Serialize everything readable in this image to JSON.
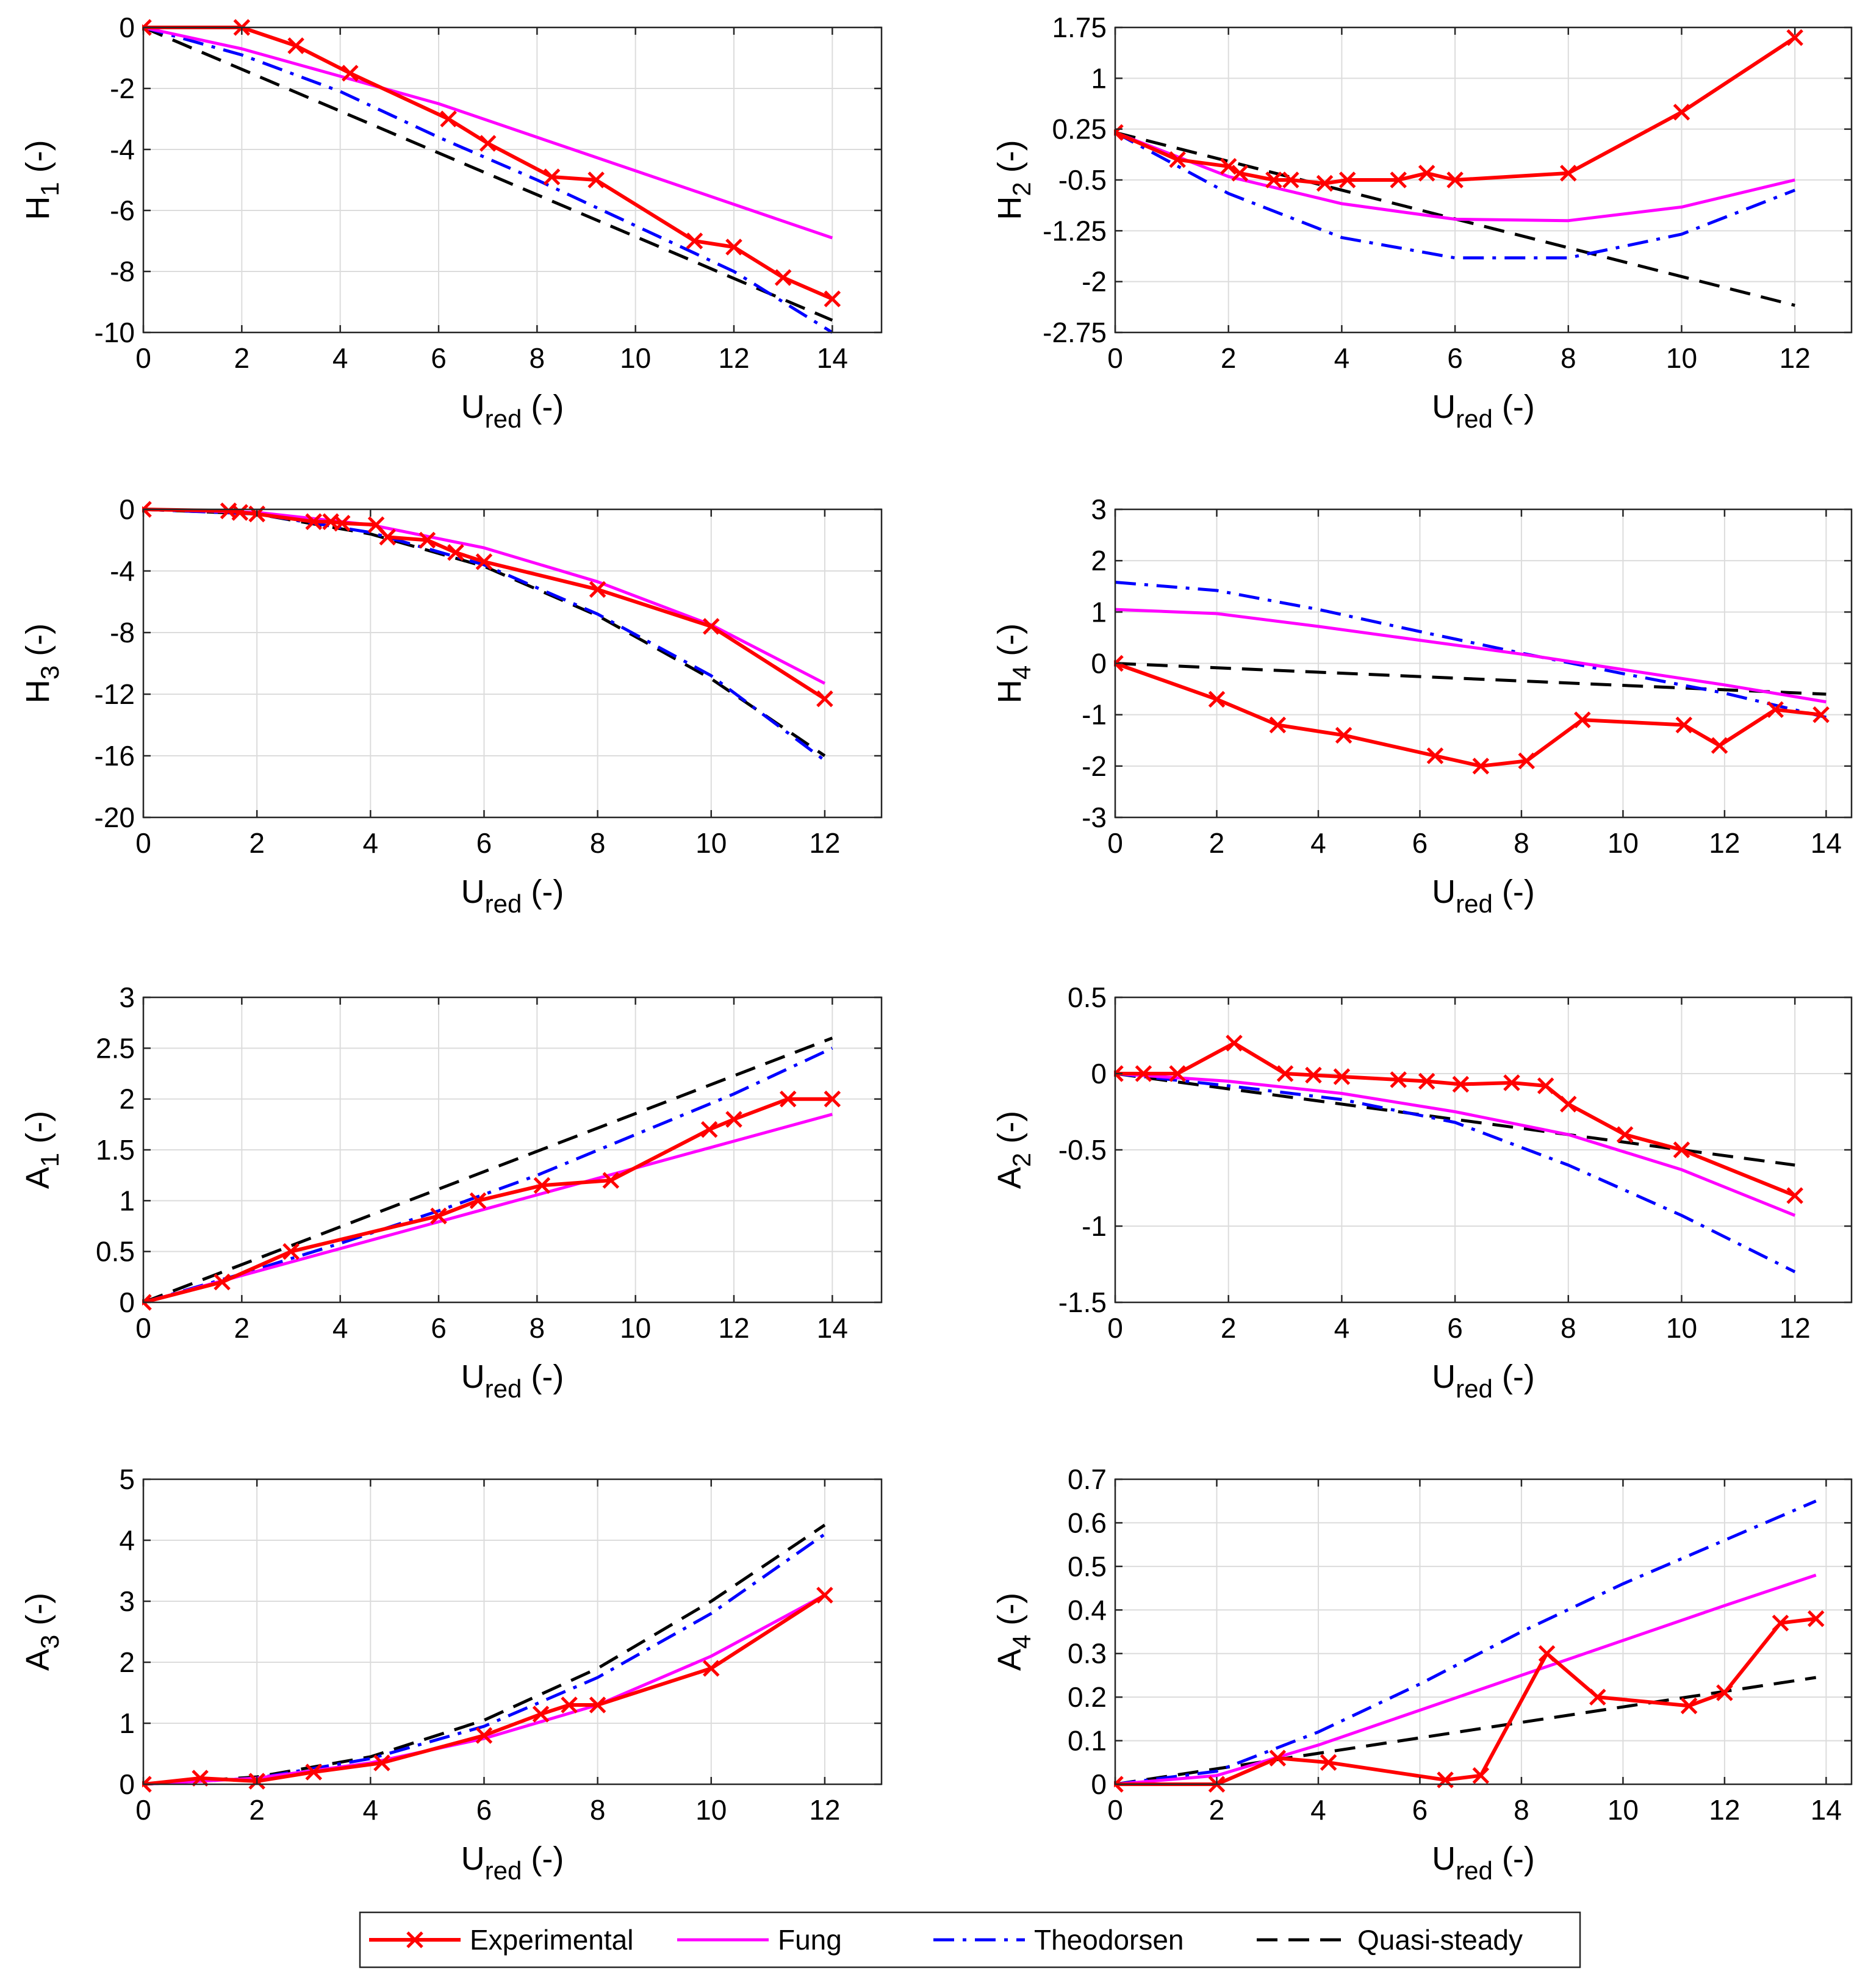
{
  "legend": {
    "entries": [
      {
        "label": "Experimental",
        "color": "#ff0000",
        "style": "solid-x"
      },
      {
        "label": "Fung",
        "color": "#ff00ff",
        "style": "solid"
      },
      {
        "label": "Theodorsen",
        "color": "#0000ff",
        "style": "dashdot"
      },
      {
        "label": "Quasi-steady",
        "color": "#000000",
        "style": "dashed"
      }
    ]
  },
  "chart_data": [
    {
      "type": "line",
      "id": "H1",
      "ylabel": {
        "main": "H",
        "sub": "1",
        "suffix": " (-)"
      },
      "xlabel": {
        "main": "U",
        "sub": "red",
        "suffix": " (-)"
      },
      "xlim": [
        0,
        15
      ],
      "ylim": [
        -10,
        0
      ],
      "xticks": [
        0,
        2,
        4,
        6,
        8,
        10,
        12,
        14
      ],
      "xtick_labels": [
        "0",
        "2",
        "4",
        "6",
        "8",
        "10",
        "12",
        "14"
      ],
      "yticks": [
        0,
        -2,
        -4,
        -6,
        -8,
        -10
      ],
      "ytick_labels": [
        "0",
        "-2",
        "-4",
        "-6",
        "-8",
        "-10"
      ],
      "series": [
        {
          "name": "Experimental",
          "x": [
            0,
            2,
            3.1,
            4.2,
            6.2,
            7,
            8.3,
            9.2,
            11.2,
            12,
            13,
            14
          ],
          "y": [
            0,
            0,
            -0.6,
            -1.5,
            -3,
            -3.8,
            -4.9,
            -5,
            -7,
            -7.2,
            -8.2,
            -8.9
          ]
        },
        {
          "name": "Fung",
          "x": [
            0,
            2,
            4,
            6,
            8,
            10,
            12,
            14
          ],
          "y": [
            0,
            -0.7,
            -1.6,
            -2.5,
            -3.6,
            -4.7,
            -5.8,
            -6.9
          ]
        },
        {
          "name": "Theodorsen",
          "x": [
            0,
            2,
            4,
            6,
            8,
            10,
            12,
            14
          ],
          "y": [
            0,
            -0.9,
            -2.1,
            -3.6,
            -5.0,
            -6.5,
            -8.0,
            -10.0
          ]
        },
        {
          "name": "Quasi-steady",
          "x": [
            0,
            14
          ],
          "y": [
            0,
            -9.6
          ]
        }
      ]
    },
    {
      "type": "line",
      "id": "H2",
      "ylabel": {
        "main": "H",
        "sub": "2",
        "suffix": " (-)"
      },
      "xlabel": {
        "main": "U",
        "sub": "red",
        "suffix": " (-)"
      },
      "xlim": [
        0,
        13
      ],
      "ylim": [
        -2.75,
        1.75
      ],
      "xticks": [
        0,
        2,
        4,
        6,
        8,
        10,
        12
      ],
      "xtick_labels": [
        "0",
        "2",
        "4",
        "6",
        "8",
        "10",
        "12"
      ],
      "yticks": [
        1.75,
        1,
        0.25,
        -0.5,
        -1.25,
        -2,
        -2.75
      ],
      "ytick_labels": [
        "1.75",
        "1",
        "0.25",
        "-0.5",
        "-1.25",
        "-2",
        "-2.75"
      ],
      "series": [
        {
          "name": "Experimental",
          "x": [
            0,
            1.1,
            2,
            2.2,
            2.8,
            3.1,
            3.7,
            4.1,
            5,
            5.5,
            6,
            8,
            10,
            12
          ],
          "y": [
            0.2,
            -0.2,
            -0.3,
            -0.4,
            -0.5,
            -0.5,
            -0.55,
            -0.5,
            -0.5,
            -0.4,
            -0.5,
            -0.4,
            0.5,
            1.6
          ]
        },
        {
          "name": "Fung",
          "x": [
            0,
            2,
            4,
            6,
            8,
            10,
            12
          ],
          "y": [
            0.2,
            -0.45,
            -0.85,
            -1.08,
            -1.1,
            -0.9,
            -0.5
          ]
        },
        {
          "name": "Theodorsen",
          "x": [
            0,
            2,
            4,
            6,
            8,
            10,
            12
          ],
          "y": [
            0.2,
            -0.7,
            -1.35,
            -1.65,
            -1.65,
            -1.3,
            -0.65
          ]
        },
        {
          "name": "Quasi-steady",
          "x": [
            0,
            12
          ],
          "y": [
            0.2,
            -2.35
          ]
        }
      ]
    },
    {
      "type": "line",
      "id": "H3",
      "ylabel": {
        "main": "H",
        "sub": "3",
        "suffix": " (-)"
      },
      "xlabel": {
        "main": "U",
        "sub": "red",
        "suffix": " (-)"
      },
      "xlim": [
        0,
        13
      ],
      "ylim": [
        -20,
        0
      ],
      "xticks": [
        0,
        2,
        4,
        6,
        8,
        10,
        12
      ],
      "xtick_labels": [
        "0",
        "2",
        "4",
        "6",
        "8",
        "10",
        "12"
      ],
      "yticks": [
        0,
        -4,
        -8,
        -12,
        -16,
        -20
      ],
      "ytick_labels": [
        "0",
        "-4",
        "-8",
        "-12",
        "-16",
        "-20"
      ],
      "series": [
        {
          "name": "Experimental",
          "x": [
            0,
            1.5,
            1.7,
            2,
            3,
            3.3,
            3.5,
            4.1,
            4.3,
            5,
            5.5,
            6,
            8,
            10,
            12
          ],
          "y": [
            0,
            -0.1,
            -0.2,
            -0.3,
            -0.8,
            -0.8,
            -0.9,
            -1.0,
            -1.8,
            -2,
            -2.8,
            -3.4,
            -5.2,
            -7.6,
            -12.3
          ]
        },
        {
          "name": "Fung",
          "x": [
            0,
            2,
            4,
            6,
            8,
            10,
            12
          ],
          "y": [
            0,
            -0.2,
            -1.0,
            -2.5,
            -4.7,
            -7.5,
            -11.3
          ]
        },
        {
          "name": "Theodorsen",
          "x": [
            0,
            2,
            4,
            6,
            8,
            10,
            12
          ],
          "y": [
            0,
            -0.3,
            -1.5,
            -3.6,
            -6.8,
            -10.8,
            -16.3
          ]
        },
        {
          "name": "Quasi-steady",
          "x": [
            0,
            2,
            4,
            6,
            8,
            10,
            12
          ],
          "y": [
            0,
            -0.3,
            -1.6,
            -3.7,
            -6.9,
            -11.0,
            -16.0
          ]
        }
      ]
    },
    {
      "type": "line",
      "id": "H4",
      "ylabel": {
        "main": "H",
        "sub": "4",
        "suffix": " (-)"
      },
      "xlabel": {
        "main": "U",
        "sub": "red",
        "suffix": " (-)"
      },
      "xlim": [
        0,
        14.5
      ],
      "ylim": [
        -3,
        3
      ],
      "xticks": [
        0,
        2,
        4,
        6,
        8,
        10,
        12,
        14
      ],
      "xtick_labels": [
        "0",
        "2",
        "4",
        "6",
        "8",
        "10",
        "12",
        "14"
      ],
      "yticks": [
        3,
        2,
        1,
        0,
        -1,
        -2,
        -3
      ],
      "ytick_labels": [
        "3",
        "2",
        "1",
        "0",
        "-1",
        "-2",
        "-3"
      ],
      "series": [
        {
          "name": "Experimental",
          "x": [
            0,
            2,
            3.2,
            4.5,
            6.3,
            7.2,
            8.1,
            9.2,
            11.2,
            11.9,
            13,
            13.9
          ],
          "y": [
            0,
            -0.7,
            -1.2,
            -1.4,
            -1.8,
            -2.0,
            -1.9,
            -1.1,
            -1.2,
            -1.6,
            -0.9,
            -1.0
          ]
        },
        {
          "name": "Fung",
          "x": [
            0,
            2,
            4,
            6,
            8,
            10,
            12,
            14
          ],
          "y": [
            1.05,
            0.97,
            0.72,
            0.45,
            0.18,
            -0.12,
            -0.42,
            -0.75
          ]
        },
        {
          "name": "Theodorsen",
          "x": [
            0,
            2,
            4,
            6,
            8,
            10,
            12,
            14
          ],
          "y": [
            1.58,
            1.42,
            1.05,
            0.62,
            0.2,
            -0.2,
            -0.58,
            -1.05
          ]
        },
        {
          "name": "Quasi-steady",
          "x": [
            0,
            14
          ],
          "y": [
            0,
            -0.6
          ]
        }
      ]
    },
    {
      "type": "line",
      "id": "A1",
      "ylabel": {
        "main": "A",
        "sub": "1",
        "suffix": " (-)"
      },
      "xlabel": {
        "main": "U",
        "sub": "red",
        "suffix": " (-)"
      },
      "xlim": [
        0,
        15
      ],
      "ylim": [
        0,
        3
      ],
      "xticks": [
        0,
        2,
        4,
        6,
        8,
        10,
        12,
        14
      ],
      "xtick_labels": [
        "0",
        "2",
        "4",
        "6",
        "8",
        "10",
        "12",
        "14"
      ],
      "yticks": [
        3,
        2.5,
        2,
        1.5,
        1,
        0.5,
        0
      ],
      "ytick_labels": [
        "3",
        "2.5",
        "2",
        "1.5",
        "1",
        "0.5",
        "0"
      ],
      "series": [
        {
          "name": "Experimental",
          "x": [
            0,
            1.6,
            3,
            6,
            6.8,
            8.1,
            9.5,
            11.5,
            12,
            13.1,
            14
          ],
          "y": [
            0,
            0.2,
            0.5,
            0.85,
            1,
            1.15,
            1.2,
            1.7,
            1.8,
            2.0,
            2.0
          ]
        },
        {
          "name": "Fung",
          "x": [
            0,
            14
          ],
          "y": [
            0,
            1.85
          ]
        },
        {
          "name": "Theodorsen",
          "x": [
            0,
            2,
            4,
            6,
            8,
            10,
            12,
            14
          ],
          "y": [
            0,
            0.28,
            0.58,
            0.9,
            1.25,
            1.65,
            2.05,
            2.5
          ]
        },
        {
          "name": "Quasi-steady",
          "x": [
            0,
            14
          ],
          "y": [
            0,
            2.6
          ]
        }
      ]
    },
    {
      "type": "line",
      "id": "A2",
      "ylabel": {
        "main": "A",
        "sub": "2",
        "suffix": " (-)"
      },
      "xlabel": {
        "main": "U",
        "sub": "red",
        "suffix": " (-)"
      },
      "xlim": [
        0,
        13
      ],
      "ylim": [
        -1.5,
        0.5
      ],
      "xticks": [
        0,
        2,
        4,
        6,
        8,
        10,
        12
      ],
      "xtick_labels": [
        "0",
        "2",
        "4",
        "6",
        "8",
        "10",
        "12"
      ],
      "yticks": [
        0.5,
        0,
        -0.5,
        -1,
        -1.5
      ],
      "ytick_labels": [
        "0.5",
        "0",
        "-0.5",
        "-1",
        "-1.5"
      ],
      "series": [
        {
          "name": "Experimental",
          "x": [
            0,
            0.5,
            1.1,
            2.1,
            3,
            3.5,
            4,
            5,
            5.5,
            6.1,
            7,
            7.6,
            8,
            9,
            10,
            12
          ],
          "y": [
            0,
            0,
            0,
            0.2,
            0,
            -0.01,
            -0.02,
            -0.04,
            -0.05,
            -0.07,
            -0.06,
            -0.08,
            -0.2,
            -0.4,
            -0.5,
            -0.8
          ]
        },
        {
          "name": "Fung",
          "x": [
            0,
            2,
            4,
            6,
            8,
            10,
            12
          ],
          "y": [
            0,
            -0.05,
            -0.13,
            -0.25,
            -0.4,
            -0.63,
            -0.93
          ]
        },
        {
          "name": "Theodorsen",
          "x": [
            0,
            2,
            4,
            6,
            8,
            10,
            12
          ],
          "y": [
            0,
            -0.08,
            -0.17,
            -0.32,
            -0.6,
            -0.93,
            -1.3
          ]
        },
        {
          "name": "Quasi-steady",
          "x": [
            0,
            12
          ],
          "y": [
            0,
            -0.6
          ]
        }
      ]
    },
    {
      "type": "line",
      "id": "A3",
      "ylabel": {
        "main": "A",
        "sub": "3",
        "suffix": " (-)"
      },
      "xlabel": {
        "main": "U",
        "sub": "red",
        "suffix": " (-)"
      },
      "xlim": [
        0,
        13
      ],
      "ylim": [
        0,
        5
      ],
      "xticks": [
        0,
        2,
        4,
        6,
        8,
        10,
        12
      ],
      "xtick_labels": [
        "0",
        "2",
        "4",
        "6",
        "8",
        "10",
        "12"
      ],
      "yticks": [
        5,
        4,
        3,
        2,
        1,
        0
      ],
      "ytick_labels": [
        "5",
        "4",
        "3",
        "2",
        "1",
        "0"
      ],
      "series": [
        {
          "name": "Experimental",
          "x": [
            0,
            1,
            2,
            3,
            4.2,
            6,
            7,
            7.5,
            8,
            10,
            12
          ],
          "y": [
            0,
            0.1,
            0.05,
            0.2,
            0.35,
            0.8,
            1.15,
            1.3,
            1.3,
            1.9,
            3.1
          ]
        },
        {
          "name": "Fung",
          "x": [
            0,
            2,
            4,
            6,
            8,
            10,
            12
          ],
          "y": [
            0,
            0.1,
            0.35,
            0.75,
            1.3,
            2.1,
            3.1
          ]
        },
        {
          "name": "Theodorsen",
          "x": [
            0,
            2,
            4,
            6,
            8,
            10,
            12
          ],
          "y": [
            0,
            0.1,
            0.42,
            0.95,
            1.75,
            2.8,
            4.1
          ]
        },
        {
          "name": "Quasi-steady",
          "x": [
            0,
            2,
            4,
            6,
            8,
            10,
            12
          ],
          "y": [
            0,
            0.12,
            0.45,
            1.05,
            1.9,
            3.0,
            4.25
          ]
        }
      ]
    },
    {
      "type": "line",
      "id": "A4",
      "ylabel": {
        "main": "A",
        "sub": "4",
        "suffix": " (-)"
      },
      "xlabel": {
        "main": "U",
        "sub": "red",
        "suffix": " (-)"
      },
      "xlim": [
        0,
        14.5
      ],
      "ylim": [
        0,
        0.7
      ],
      "xticks": [
        0,
        2,
        4,
        6,
        8,
        10,
        12,
        14
      ],
      "xtick_labels": [
        "0",
        "2",
        "4",
        "6",
        "8",
        "10",
        "12",
        "14"
      ],
      "yticks": [
        0.7,
        0.6,
        0.5,
        0.4,
        0.3,
        0.2,
        0.1,
        0
      ],
      "ytick_labels": [
        "0.7",
        "0.6",
        "0.5",
        "0.4",
        "0.3",
        "0.2",
        "0.1",
        "0"
      ],
      "series": [
        {
          "name": "Experimental",
          "x": [
            0,
            2,
            3.2,
            4.2,
            6.5,
            7.2,
            8.5,
            9.5,
            11.3,
            12,
            13.1,
            13.8
          ],
          "y": [
            0,
            0,
            0.06,
            0.05,
            0.01,
            0.02,
            0.3,
            0.2,
            0.18,
            0.21,
            0.37,
            0.38
          ]
        },
        {
          "name": "Fung",
          "x": [
            0,
            2,
            4,
            6,
            8,
            10,
            12,
            13.8
          ],
          "y": [
            0,
            0.02,
            0.09,
            0.17,
            0.25,
            0.33,
            0.41,
            0.48
          ]
        },
        {
          "name": "Theodorsen",
          "x": [
            0,
            2,
            4,
            6,
            8,
            10,
            12,
            13.8
          ],
          "y": [
            0,
            0.03,
            0.12,
            0.23,
            0.35,
            0.46,
            0.56,
            0.65
          ]
        },
        {
          "name": "Quasi-steady",
          "x": [
            0,
            13.8
          ],
          "y": [
            0,
            0.245
          ]
        }
      ]
    }
  ]
}
